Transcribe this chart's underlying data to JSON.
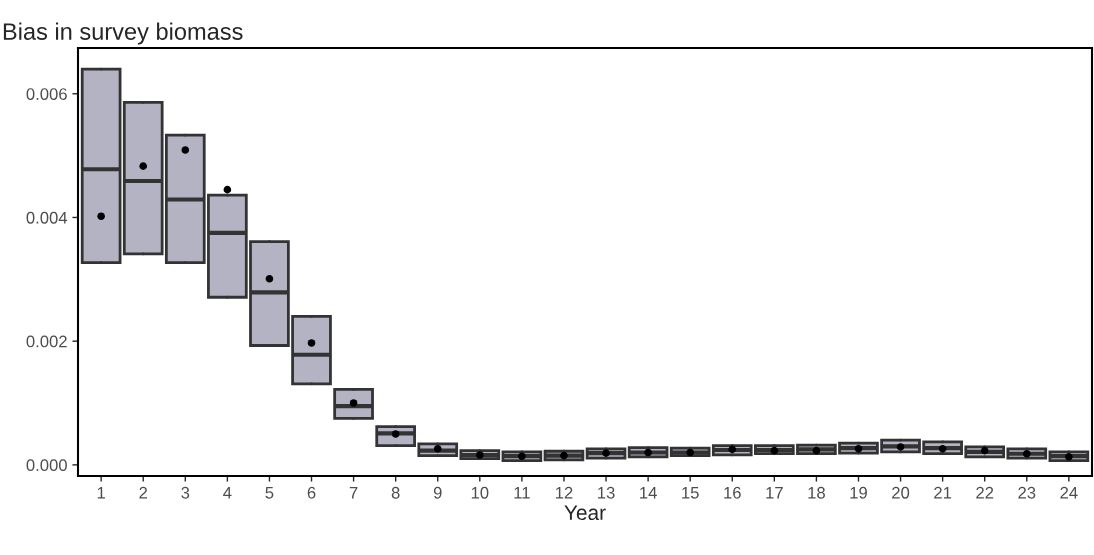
{
  "chart_data": {
    "type": "box",
    "title": "Bias in survey biomass",
    "xlabel": "Year",
    "categories": [
      "1",
      "2",
      "3",
      "4",
      "5",
      "6",
      "7",
      "8",
      "9",
      "10",
      "11",
      "12",
      "13",
      "14",
      "15",
      "16",
      "17",
      "18",
      "19",
      "20",
      "21",
      "22",
      "23",
      "24"
    ],
    "ylim": [
      -0.00018,
      0.00674
    ],
    "yticks": [
      {
        "value": 0,
        "label": "0.000"
      },
      {
        "value": 0.002,
        "label": "0.002"
      },
      {
        "value": 0.004,
        "label": "0.004"
      },
      {
        "value": 0.006,
        "label": "0.006"
      }
    ],
    "grid": false,
    "legend": false,
    "series": [
      {
        "color": "#b4b3c4",
        "boxes": [
          {
            "low": 0.00327,
            "q1": 0.00327,
            "median": 0.00478,
            "q3": 0.0064,
            "high": 0.0064
          },
          {
            "low": 0.00341,
            "q1": 0.00341,
            "median": 0.00459,
            "q3": 0.00586,
            "high": 0.00586
          },
          {
            "low": 0.00327,
            "q1": 0.00327,
            "median": 0.00429,
            "q3": 0.00533,
            "high": 0.00533
          },
          {
            "low": 0.00271,
            "q1": 0.00271,
            "median": 0.00375,
            "q3": 0.00436,
            "high": 0.00436
          },
          {
            "low": 0.00193,
            "q1": 0.00193,
            "median": 0.00279,
            "q3": 0.00361,
            "high": 0.00361
          },
          {
            "low": 0.00131,
            "q1": 0.00131,
            "median": 0.00178,
            "q3": 0.0024,
            "high": 0.0024
          },
          {
            "low": 0.00075,
            "q1": 0.00075,
            "median": 0.00095,
            "q3": 0.00122,
            "high": 0.00122
          },
          {
            "low": 0.00031,
            "q1": 0.00031,
            "median": 0.00051,
            "q3": 0.00062,
            "high": 0.00062
          },
          {
            "low": 0.00015,
            "q1": 0.00015,
            "median": 0.00023,
            "q3": 0.00034,
            "high": 0.00034
          },
          {
            "low": 0.0001,
            "q1": 0.0001,
            "median": 0.00016,
            "q3": 0.00023,
            "high": 0.00023
          },
          {
            "low": 7e-05,
            "q1": 7e-05,
            "median": 0.00014,
            "q3": 0.00021,
            "high": 0.00021
          },
          {
            "low": 8e-05,
            "q1": 8e-05,
            "median": 0.00015,
            "q3": 0.00022,
            "high": 0.00022
          },
          {
            "low": 0.00011,
            "q1": 0.00011,
            "median": 0.00019,
            "q3": 0.00026,
            "high": 0.00026
          },
          {
            "low": 0.00013,
            "q1": 0.00013,
            "median": 0.0002,
            "q3": 0.00028,
            "high": 0.00028
          },
          {
            "low": 0.00015,
            "q1": 0.00015,
            "median": 0.0002,
            "q3": 0.00027,
            "high": 0.00027
          },
          {
            "low": 0.00016,
            "q1": 0.00016,
            "median": 0.00024,
            "q3": 0.00031,
            "high": 0.00031
          },
          {
            "low": 0.00018,
            "q1": 0.00018,
            "median": 0.00024,
            "q3": 0.00031,
            "high": 0.00031
          },
          {
            "low": 0.00018,
            "q1": 0.00018,
            "median": 0.00025,
            "q3": 0.00032,
            "high": 0.00032
          },
          {
            "low": 0.00019,
            "q1": 0.00019,
            "median": 0.00027,
            "q3": 0.00035,
            "high": 0.00035
          },
          {
            "low": 0.00021,
            "q1": 0.00021,
            "median": 0.0003,
            "q3": 0.0004,
            "high": 0.0004
          },
          {
            "low": 0.00018,
            "q1": 0.00018,
            "median": 0.00027,
            "q3": 0.00037,
            "high": 0.00037
          },
          {
            "low": 0.00013,
            "q1": 0.00013,
            "median": 0.00021,
            "q3": 0.00029,
            "high": 0.00029
          },
          {
            "low": 0.00011,
            "q1": 0.00011,
            "median": 0.00018,
            "q3": 0.00026,
            "high": 0.00026
          },
          {
            "low": 7e-05,
            "q1": 7e-05,
            "median": 0.00014,
            "q3": 0.00021,
            "high": 0.00021
          }
        ]
      },
      {
        "type": "scatter",
        "color": "#000000",
        "marker": "circle",
        "x": [
          "1",
          "2",
          "3",
          "4",
          "5",
          "6",
          "7",
          "8",
          "9",
          "10",
          "11",
          "12",
          "13",
          "14",
          "15",
          "16",
          "17",
          "18",
          "19",
          "20",
          "21",
          "22",
          "23",
          "24"
        ],
        "values": [
          0.00402,
          0.00483,
          0.00509,
          0.00445,
          0.00301,
          0.00197,
          0.001,
          0.0005,
          0.00026,
          0.00016,
          0.00014,
          0.00015,
          0.00019,
          0.0002,
          0.0002,
          0.00025,
          0.00023,
          0.00023,
          0.00026,
          0.00029,
          0.00026,
          0.00023,
          0.00018,
          0.00013
        ]
      }
    ]
  }
}
